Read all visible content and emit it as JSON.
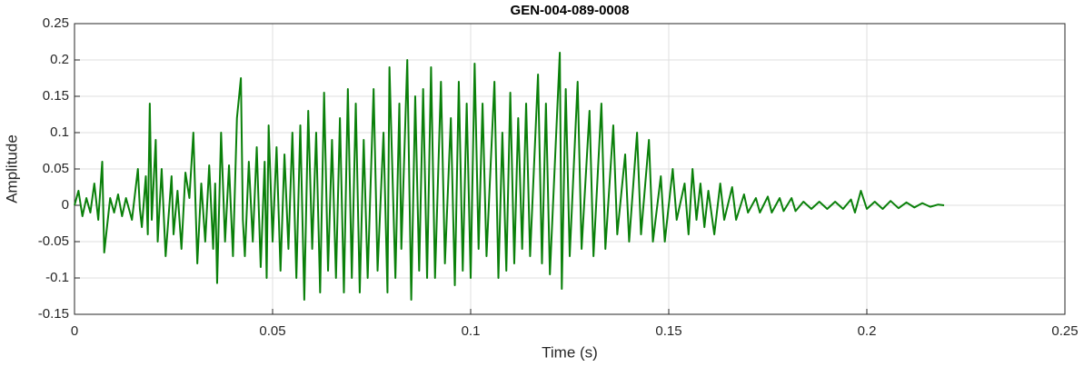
{
  "chart_data": {
    "type": "line",
    "title": "GEN-004-089-0008",
    "x_label": "Time (s)",
    "y_label": "Amplitude",
    "color": "#0a800a",
    "grid": true,
    "xlim": [
      0,
      0.25
    ],
    "xticks": [
      0,
      0.05,
      0.1,
      0.15,
      0.2,
      0.25
    ],
    "ylim": [
      -0.15,
      0.25
    ],
    "yticks": [
      -0.15,
      -0.1,
      -0.05,
      0,
      0.05,
      0.1,
      0.15,
      0.2,
      0.25
    ],
    "x": [
      0,
      0.001,
      0.002,
      0.003,
      0.004,
      0.005,
      0.006,
      0.007,
      0.0075,
      0.009,
      0.01,
      0.011,
      0.012,
      0.013,
      0.0145,
      0.016,
      0.0165,
      0.017,
      0.018,
      0.0185,
      0.019,
      0.0195,
      0.0205,
      0.021,
      0.022,
      0.023,
      0.0245,
      0.025,
      0.026,
      0.027,
      0.028,
      0.029,
      0.03,
      0.031,
      0.032,
      0.033,
      0.034,
      0.035,
      0.0355,
      0.036,
      0.037,
      0.038,
      0.039,
      0.04,
      0.041,
      0.042,
      0.0425,
      0.043,
      0.044,
      0.045,
      0.046,
      0.047,
      0.048,
      0.0485,
      0.049,
      0.05,
      0.051,
      0.052,
      0.053,
      0.054,
      0.055,
      0.056,
      0.057,
      0.058,
      0.059,
      0.06,
      0.061,
      0.062,
      0.063,
      0.064,
      0.065,
      0.066,
      0.067,
      0.068,
      0.069,
      0.07,
      0.071,
      0.072,
      0.073,
      0.074,
      0.0755,
      0.0765,
      0.078,
      0.079,
      0.0795,
      0.081,
      0.082,
      0.0825,
      0.084,
      0.085,
      0.086,
      0.087,
      0.088,
      0.089,
      0.09,
      0.091,
      0.0925,
      0.0935,
      0.095,
      0.096,
      0.097,
      0.098,
      0.099,
      0.1,
      0.101,
      0.102,
      0.103,
      0.104,
      0.106,
      0.107,
      0.108,
      0.109,
      0.11,
      0.111,
      0.112,
      0.113,
      0.114,
      0.115,
      0.117,
      0.118,
      0.119,
      0.12,
      0.1225,
      0.123,
      0.124,
      0.125,
      0.127,
      0.128,
      0.13,
      0.131,
      0.133,
      0.134,
      0.136,
      0.137,
      0.139,
      0.14,
      0.142,
      0.143,
      0.145,
      0.146,
      0.148,
      0.149,
      0.151,
      0.152,
      0.154,
      0.155,
      0.156,
      0.157,
      0.158,
      0.159,
      0.16,
      0.1615,
      0.163,
      0.164,
      0.166,
      0.167,
      0.169,
      0.17,
      0.172,
      0.173,
      0.175,
      0.176,
      0.178,
      0.179,
      0.181,
      0.182,
      0.184,
      0.186,
      0.188,
      0.19,
      0.192,
      0.194,
      0.196,
      0.197,
      0.1985,
      0.2,
      0.202,
      0.204,
      0.206,
      0.208,
      0.21,
      0.212,
      0.214,
      0.216,
      0.218,
      0.2195
    ],
    "values": [
      0,
      0.02,
      -0.015,
      0.01,
      -0.01,
      0.03,
      -0.02,
      0.06,
      -0.065,
      0.01,
      -0.01,
      0.015,
      -0.015,
      0.01,
      -0.02,
      0.05,
      -0.005,
      -0.03,
      0.04,
      -0.04,
      0.14,
      -0.02,
      0.09,
      -0.05,
      0.05,
      -0.07,
      0.04,
      -0.04,
      0.02,
      -0.06,
      0.045,
      0.01,
      0.1,
      -0.08,
      0.03,
      -0.05,
      0.055,
      -0.06,
      0.03,
      -0.107,
      0.1,
      -0.05,
      0.055,
      -0.07,
      0.12,
      0.175,
      -0.02,
      -0.07,
      0.06,
      -0.05,
      0.08,
      -0.085,
      0.06,
      -0.1,
      0.11,
      -0.05,
      0.08,
      -0.09,
      0.07,
      -0.06,
      0.1,
      -0.1,
      0.11,
      -0.13,
      0.13,
      -0.06,
      0.1,
      -0.12,
      0.155,
      -0.09,
      0.09,
      -0.1,
      0.12,
      -0.12,
      0.16,
      -0.1,
      0.14,
      -0.12,
      0.09,
      -0.1,
      0.16,
      -0.09,
      0.1,
      -0.12,
      0.19,
      -0.1,
      0.14,
      -0.06,
      0.2,
      -0.13,
      0.15,
      -0.09,
      0.16,
      -0.1,
      0.19,
      -0.1,
      0.17,
      -0.08,
      0.12,
      -0.11,
      0.17,
      -0.09,
      0.14,
      -0.1,
      0.195,
      -0.06,
      0.14,
      -0.07,
      0.17,
      -0.1,
      0.1,
      -0.09,
      0.155,
      -0.08,
      0.12,
      -0.06,
      0.14,
      -0.07,
      0.18,
      -0.08,
      0.14,
      -0.095,
      0.21,
      -0.115,
      0.16,
      -0.07,
      0.17,
      -0.06,
      0.13,
      -0.07,
      0.14,
      -0.06,
      0.11,
      -0.04,
      0.07,
      -0.05,
      0.1,
      -0.04,
      0.09,
      -0.05,
      0.04,
      -0.05,
      0.05,
      -0.02,
      0.03,
      -0.04,
      0.05,
      -0.02,
      0.03,
      -0.03,
      0.02,
      -0.04,
      0.03,
      -0.02,
      0.025,
      -0.02,
      0.015,
      -0.01,
      0.01,
      -0.01,
      0.012,
      -0.01,
      0.01,
      -0.008,
      0.01,
      -0.008,
      0.005,
      -0.005,
      0.005,
      -0.005,
      0.005,
      -0.005,
      0.008,
      -0.01,
      0.02,
      -0.005,
      0.005,
      -0.005,
      0.006,
      -0.004,
      0.004,
      -0.003,
      0.003,
      -0.002,
      0.001,
      0
    ]
  }
}
